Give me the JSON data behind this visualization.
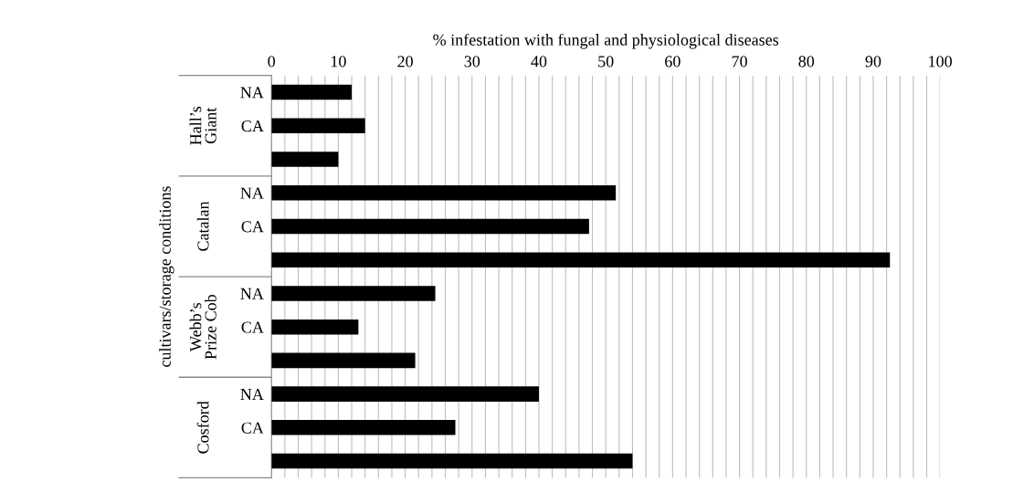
{
  "chart_data": {
    "type": "bar",
    "orientation": "horizontal",
    "xlabel": "% infestation with fungal and physiological diseases",
    "ylabel": "cultivars/storage conditions",
    "categories": [
      "NA",
      "CA",
      null,
      "NA",
      "CA",
      null,
      "NA",
      "CA",
      null,
      "NA",
      "CA",
      null
    ],
    "values": [
      12,
      14,
      10,
      51.5,
      47.5,
      92.5,
      24.5,
      13,
      21.5,
      40,
      27.5,
      54
    ],
    "color": "#000000",
    "annotations": [
      "Hall’s\nGiant",
      "Catalan",
      "Webb’s\nPrize Cob",
      "Cosford"
    ],
    "xlim": [
      0,
      100
    ],
    "xticks": [
      0,
      {
        "value": 2,
        "label": null
      },
      {
        "value": 4,
        "label": null
      },
      {
        "value": 6,
        "label": null
      },
      {
        "value": 8,
        "label": null
      },
      10,
      {
        "value": 12,
        "label": null
      },
      {
        "value": 14,
        "label": null
      },
      {
        "value": 16,
        "label": null
      },
      {
        "value": 18,
        "label": null
      },
      20,
      {
        "value": 22,
        "label": null
      },
      {
        "value": 24,
        "label": null
      },
      {
        "value": 26,
        "label": null
      },
      {
        "value": 28,
        "label": null
      },
      30,
      {
        "value": 32,
        "label": null
      },
      {
        "value": 34,
        "label": null
      },
      {
        "value": 36,
        "label": null
      },
      {
        "value": 38,
        "label": null
      },
      40,
      {
        "value": 42,
        "label": null
      },
      {
        "value": 44,
        "label": null
      },
      {
        "value": 46,
        "label": null
      },
      {
        "value": 48,
        "label": null
      },
      50,
      {
        "value": 52,
        "label": null
      },
      {
        "value": 54,
        "label": null
      },
      {
        "value": 56,
        "label": null
      },
      {
        "value": 58,
        "label": null
      },
      60,
      {
        "value": 62,
        "label": null
      },
      {
        "value": 64,
        "label": null
      },
      {
        "value": 66,
        "label": null
      },
      {
        "value": 68,
        "label": null
      },
      70,
      {
        "value": 72,
        "label": null
      },
      {
        "value": 74,
        "label": null
      },
      {
        "value": 76,
        "label": null
      },
      {
        "value": 78,
        "label": null
      },
      80,
      {
        "value": 82,
        "label": null
      },
      {
        "value": 84,
        "label": null
      },
      {
        "value": 86,
        "label": null
      },
      {
        "value": 88,
        "label": null
      },
      90,
      {
        "value": 92,
        "label": null
      },
      {
        "value": 94,
        "label": null
      },
      {
        "value": 96,
        "label": null
      },
      {
        "value": 98,
        "label": null
      },
      100
    ],
    "grid": "x"
  }
}
